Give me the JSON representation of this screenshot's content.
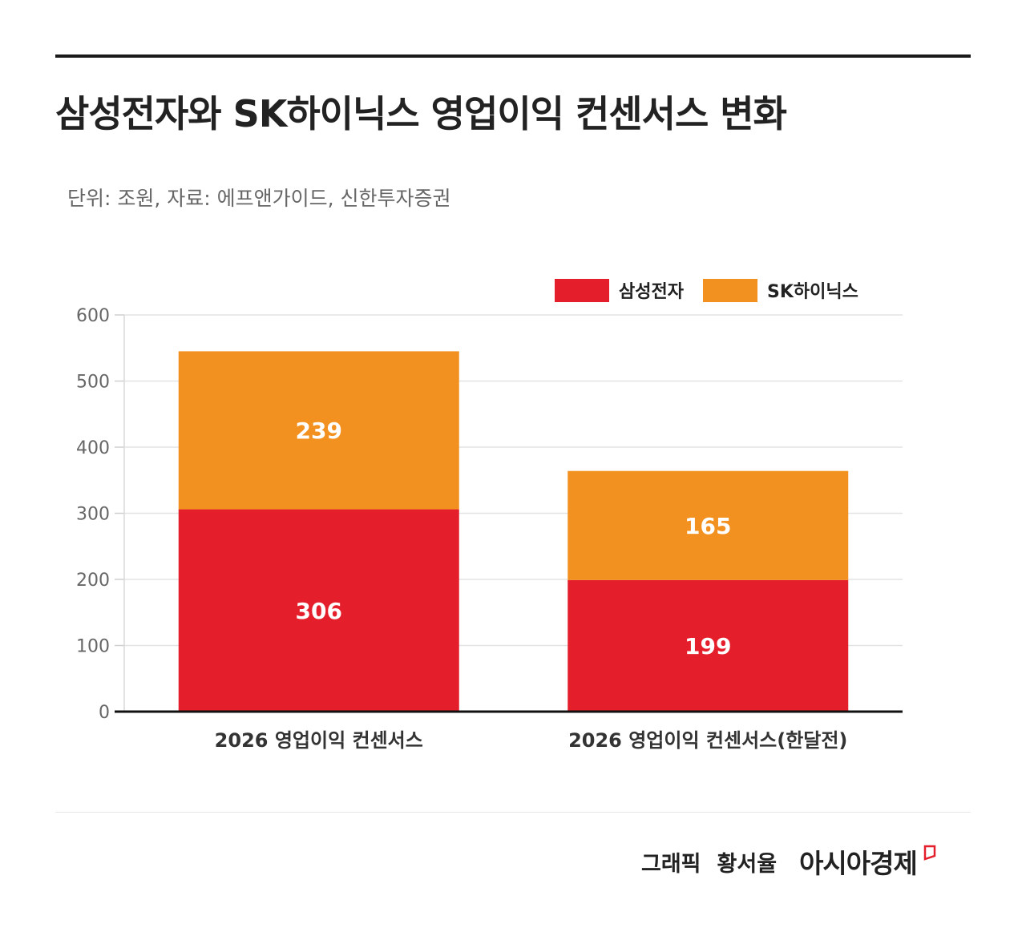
{
  "header": {
    "title": "삼성전자와 SK하이닉스 영업이익 컨센서스 변화",
    "subtitle": "단위: 조원, 자료: 에프앤가이드, 신한투자증권"
  },
  "legend": [
    {
      "label": "삼성전자",
      "color": "#e41e2b"
    },
    {
      "label": "SK하이닉스",
      "color": "#f29020"
    }
  ],
  "chart_data": {
    "type": "bar",
    "stacked": true,
    "categories": [
      "2026 영업이익 컨센서스",
      "2026 영업이익 컨센서스(한달전)"
    ],
    "series": [
      {
        "name": "삼성전자",
        "color": "#e41e2b",
        "values": [
          306,
          199
        ]
      },
      {
        "name": "SK하이닉스",
        "color": "#f29020",
        "values": [
          239,
          165
        ]
      }
    ],
    "ylim": [
      0,
      600
    ],
    "yticks": [
      0,
      100,
      200,
      300,
      400,
      500,
      600
    ],
    "grid": true,
    "legend_position": "top-right",
    "data_labels": true
  },
  "footer": {
    "credit_label": "그래픽",
    "credit_name": "황서율",
    "brand": "아시아경제",
    "brand_icon": "red-outlined-square-icon"
  }
}
